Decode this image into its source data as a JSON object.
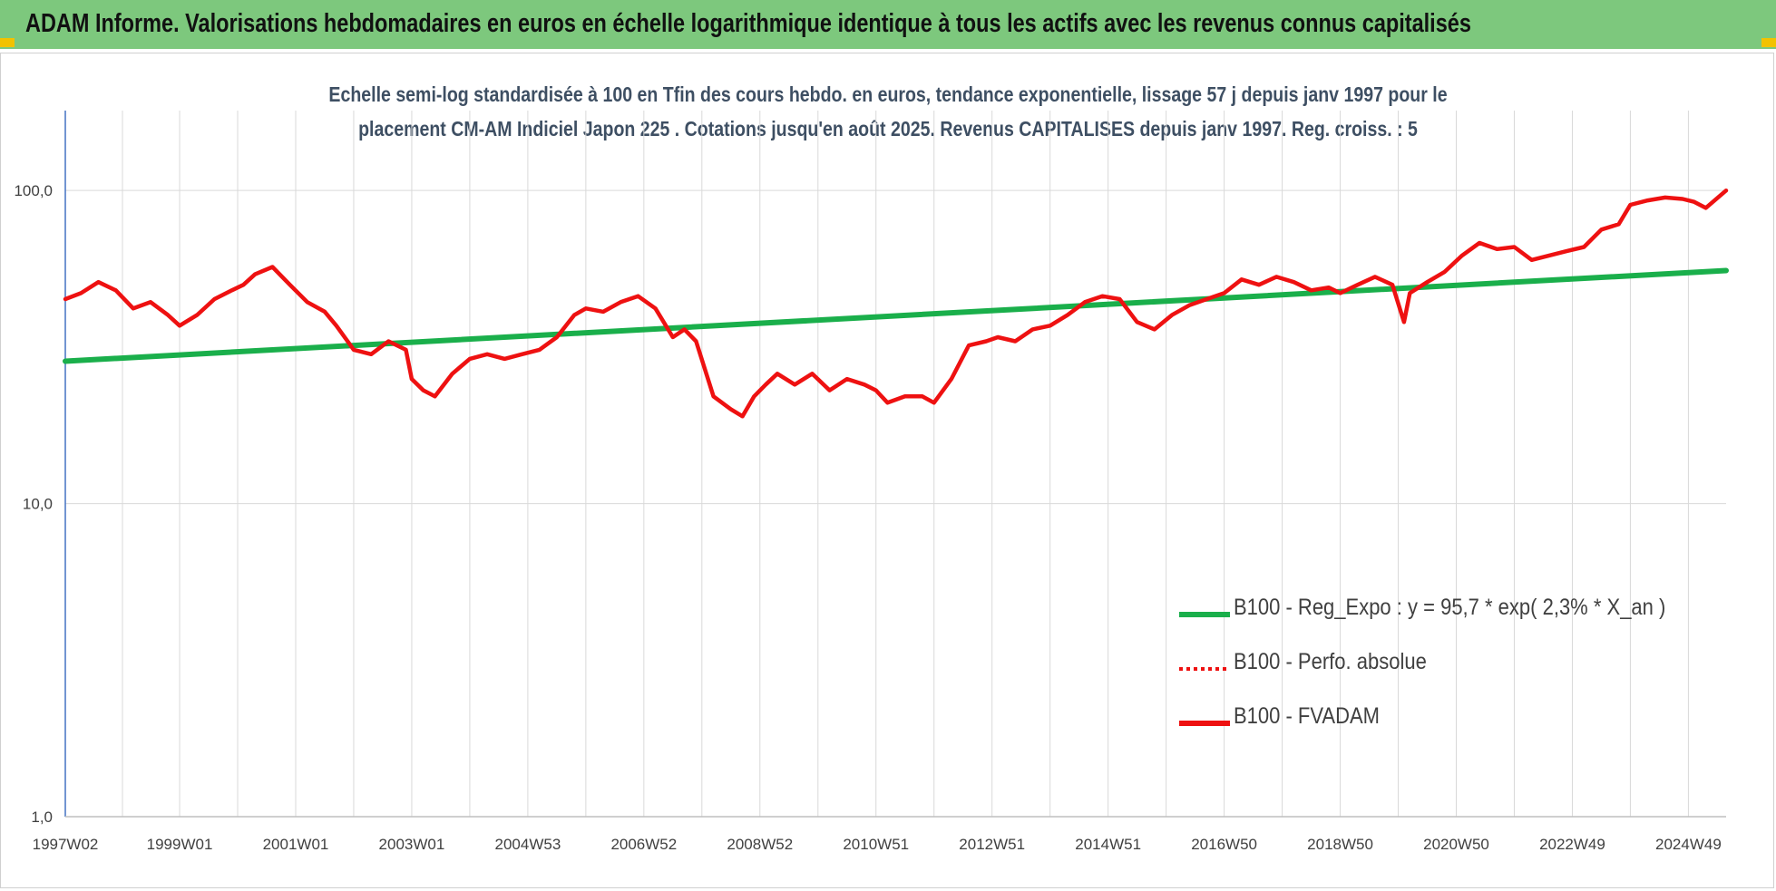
{
  "header": {
    "title": "ADAM Informe. Valorisations hebdomadaires en euros en échelle logarithmique identique à tous les actifs avec les revenus connus capitalisés"
  },
  "colors": {
    "banner": "#7dc87d",
    "trend": "#1aaf4b",
    "fvadam": "#ee1111",
    "grid": "#d9d9d9",
    "axis": "#4472c4",
    "corner_accent": "#f2c200"
  },
  "chart_data": {
    "type": "line",
    "subtitle_line1": "Echelle semi-log standardisée à 100 en Tfin des cours hebdo. en euros, tendance exponentielle, lissage 57 j depuis janv 1997 pour le",
    "subtitle_line2": "placement CM-AM Indiciel Japon 225 . Cotations jusqu'en août 2025. Revenus CAPITALISES depuis janv 1997. Reg. croiss. : 5",
    "y_scale": "log",
    "ylim": [
      1,
      180
    ],
    "y_ticks": [
      {
        "value": 1,
        "label": "1,0"
      },
      {
        "value": 10,
        "label": "10,0"
      },
      {
        "value": 100,
        "label": "100,0"
      }
    ],
    "x_range": [
      1997.03,
      2025.65
    ],
    "x_ticks": [
      {
        "value": 1997.03,
        "label": "1997W02"
      },
      {
        "value": 1999.0,
        "label": "1999W01"
      },
      {
        "value": 2001.0,
        "label": "2001W01"
      },
      {
        "value": 2003.0,
        "label": "2003W01"
      },
      {
        "value": 2005.0,
        "label": "2004W53"
      },
      {
        "value": 2007.0,
        "label": "2006W52"
      },
      {
        "value": 2009.0,
        "label": "2008W52"
      },
      {
        "value": 2011.0,
        "label": "2010W51"
      },
      {
        "value": 2013.0,
        "label": "2012W51"
      },
      {
        "value": 2015.0,
        "label": "2014W51"
      },
      {
        "value": 2017.0,
        "label": "2016W50"
      },
      {
        "value": 2019.0,
        "label": "2018W50"
      },
      {
        "value": 2021.0,
        "label": "2020W50"
      },
      {
        "value": 2023.0,
        "label": "2022W49"
      },
      {
        "value": 2025.0,
        "label": "2024W49"
      }
    ],
    "grid": true,
    "legend_position": "lower-right",
    "series": [
      {
        "name": "B100 - Reg_Expo : y = 95,7 * exp( 2,3% * X_an )",
        "style": "solid-green",
        "x": [
          1997.03,
          2025.65
        ],
        "y": [
          28.5,
          55.5
        ]
      },
      {
        "name": "B100 - Perfo. absolue",
        "style": "dotted-red",
        "x": [],
        "y": []
      },
      {
        "name": "B100 - FVADAM",
        "style": "solid-red",
        "x": [
          1997.03,
          1997.3,
          1997.6,
          1997.9,
          1998.2,
          1998.5,
          1998.8,
          1999.0,
          1999.3,
          1999.6,
          1999.9,
          2000.1,
          2000.3,
          2000.6,
          2000.9,
          2001.2,
          2001.5,
          2001.7,
          2002.0,
          2002.3,
          2002.6,
          2002.9,
          2003.0,
          2003.2,
          2003.4,
          2003.7,
          2004.0,
          2004.3,
          2004.6,
          2004.9,
          2005.2,
          2005.5,
          2005.8,
          2006.0,
          2006.3,
          2006.6,
          2006.9,
          2007.2,
          2007.5,
          2007.7,
          2007.9,
          2008.2,
          2008.5,
          2008.7,
          2008.9,
          2009.1,
          2009.3,
          2009.6,
          2009.9,
          2010.2,
          2010.5,
          2010.8,
          2011.0,
          2011.2,
          2011.5,
          2011.8,
          2012.0,
          2012.3,
          2012.6,
          2012.9,
          2013.1,
          2013.4,
          2013.7,
          2014.0,
          2014.3,
          2014.6,
          2014.9,
          2015.2,
          2015.5,
          2015.8,
          2016.1,
          2016.4,
          2016.7,
          2017.0,
          2017.3,
          2017.6,
          2017.9,
          2018.2,
          2018.5,
          2018.8,
          2019.0,
          2019.3,
          2019.6,
          2019.9,
          2020.1,
          2020.2,
          2020.5,
          2020.8,
          2021.1,
          2021.4,
          2021.7,
          2022.0,
          2022.3,
          2022.6,
          2022.9,
          2023.2,
          2023.5,
          2023.8,
          2024.0,
          2024.3,
          2024.6,
          2024.9,
          2025.1,
          2025.3,
          2025.65
        ],
        "y": [
          45,
          47,
          51,
          48,
          42,
          44,
          40,
          37,
          40,
          45,
          48,
          50,
          54,
          57,
          50,
          44,
          41,
          37,
          31,
          30,
          33,
          31,
          25,
          23,
          22,
          26,
          29,
          30,
          29,
          30,
          31,
          34,
          40,
          42,
          41,
          44,
          46,
          42,
          34,
          36,
          33,
          22,
          20,
          19,
          22,
          24,
          26,
          24,
          26,
          23,
          25,
          24,
          23,
          21,
          22,
          22,
          21,
          25,
          32,
          33,
          34,
          33,
          36,
          37,
          40,
          44,
          46,
          45,
          38,
          36,
          40,
          43,
          45,
          47,
          52,
          50,
          53,
          51,
          48,
          49,
          47,
          50,
          53,
          50,
          38,
          47,
          51,
          55,
          62,
          68,
          65,
          66,
          60,
          62,
          64,
          66,
          75,
          78,
          90,
          93,
          95,
          94,
          92,
          88,
          100
        ]
      }
    ]
  },
  "legend": {
    "items": [
      {
        "label": "B100 - Reg_Expo : y = 95,7 * exp( 2,3% *  X_an )"
      },
      {
        "label": "B100 - Perfo. absolue"
      },
      {
        "label": "B100 - FVADAM"
      }
    ]
  }
}
